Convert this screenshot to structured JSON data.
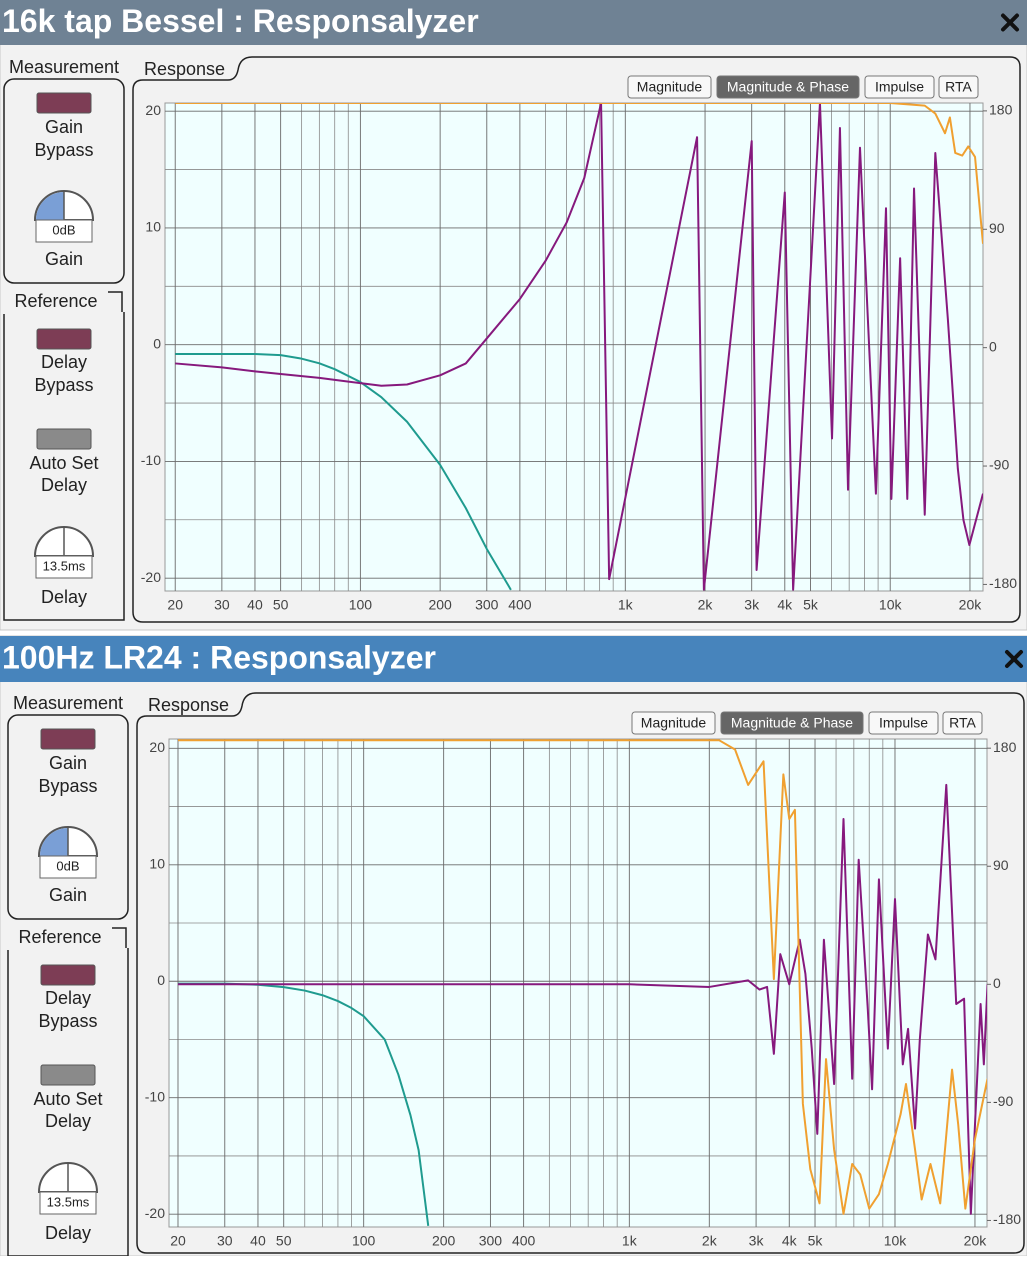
{
  "windows": [
    {
      "title": "16k tap Bessel : Responsalyzer",
      "measurement": "Measurement",
      "gain_bypass": [
        "Gain",
        "Bypass"
      ],
      "gain_value": "0dB",
      "gain": "Gain",
      "reference": "Reference",
      "delay_bypass": [
        "Delay",
        "Bypass"
      ],
      "auto_set_delay": [
        "Auto Set",
        "Delay"
      ],
      "delay_value": "13.5ms",
      "delay": "Delay",
      "response_tab": "Response",
      "buttons": [
        "Magnitude",
        "Magnitude & Phase",
        "Impulse",
        "RTA"
      ],
      "selected_button": 1
    },
    {
      "title": "100Hz LR24 : Responsalyzer",
      "measurement": "Measurement",
      "gain_bypass": [
        "Gain",
        "Bypass"
      ],
      "gain_value": "0dB",
      "gain": "Gain",
      "reference": "Reference",
      "delay_bypass": [
        "Delay",
        "Bypass"
      ],
      "auto_set_delay": [
        "Auto Set",
        "Delay"
      ],
      "delay_value": "13.5ms",
      "delay": "Delay",
      "response_tab": "Response",
      "buttons": [
        "Magnitude",
        "Magnitude & Phase",
        "Impulse",
        "RTA"
      ],
      "selected_button": 1
    }
  ],
  "chart_data": [
    {
      "type": "line",
      "log_x": true,
      "grid": true,
      "xlim": [
        18.3,
        22400
      ],
      "xticks": [
        20,
        30,
        40,
        50,
        100,
        200,
        300,
        400,
        {
          "value": 1000,
          "label": "1k"
        },
        {
          "value": 2000,
          "label": "2k"
        },
        {
          "value": 3000,
          "label": "3k"
        },
        {
          "value": 4000,
          "label": "4k"
        },
        {
          "value": 5000,
          "label": "5k"
        },
        {
          "value": 10000,
          "label": "10k"
        },
        {
          "value": 20000,
          "label": "20k"
        }
      ],
      "xminor": [
        60,
        70,
        80,
        90,
        500,
        600,
        700,
        800,
        900,
        6000,
        7000,
        8000,
        9000
      ],
      "ylim": [
        -21.1,
        20.7
      ],
      "yticks": [
        -20,
        -10,
        0,
        10,
        20
      ],
      "yminor": [
        -15,
        -5,
        5,
        15
      ],
      "y2lim": [
        -185,
        186
      ],
      "y2ticks": [
        -180,
        -90,
        0,
        90,
        180
      ],
      "series": [
        {
          "color": "#1f9b8f",
          "x": [
            20,
            30,
            40,
            50,
            60,
            70,
            80,
            100,
            120,
            150,
            200,
            250,
            300,
            370
          ],
          "values": [
            -0.8,
            -0.8,
            -0.8,
            -0.9,
            -1.2,
            -1.6,
            -2.1,
            -3.2,
            -4.5,
            -6.6,
            -10.3,
            -14,
            -17.5,
            -21
          ]
        },
        {
          "color": "#86197d",
          "axis": "y2",
          "x": [
            20,
            30,
            40,
            50,
            70,
            100,
            120,
            150,
            200,
            250,
            300,
            400,
            500,
            600,
            700,
            810,
            869,
            1866,
            1980,
            3000,
            3130,
            4000,
            4300,
            5430,
            6030,
            6460,
            6930,
            7690,
            8830,
            9640,
            10100,
            10900,
            11600,
            12300,
            13500,
            14800,
            16500,
            18000,
            18900,
            19900,
            22400
          ],
          "values": [
            -12,
            -15,
            -18,
            -20,
            -23,
            -27,
            -29,
            -28,
            -21,
            -12,
            7,
            37,
            66,
            95,
            129,
            186,
            -176,
            160,
            -184,
            157,
            -169,
            118,
            -184,
            186,
            -69,
            167,
            -108,
            152,
            -111,
            106,
            -115,
            68,
            -115,
            121,
            -127,
            148,
            22,
            -92,
            -131,
            -150,
            -111
          ]
        },
        {
          "color": "#f0a030",
          "axis": "y2",
          "x": [
            20,
            1000,
            10000,
            13500,
            14800,
            16100,
            16800,
            17600,
            18700,
            19700,
            20900,
            22400
          ],
          "values": [
            186,
            186,
            186,
            184,
            178,
            163,
            175,
            148,
            146,
            153,
            145,
            79
          ]
        }
      ]
    },
    {
      "type": "line",
      "log_x": true,
      "grid": true,
      "xlim": [
        18.5,
        22200
      ],
      "xticks": [
        20,
        30,
        40,
        50,
        100,
        200,
        300,
        400,
        {
          "value": 1000,
          "label": "1k"
        },
        {
          "value": 2000,
          "label": "2k"
        },
        {
          "value": 3000,
          "label": "3k"
        },
        {
          "value": 4000,
          "label": "4k"
        },
        {
          "value": 5000,
          "label": "5k"
        },
        {
          "value": 10000,
          "label": "10k"
        },
        {
          "value": 20000,
          "label": "20k"
        }
      ],
      "xminor": [
        60,
        70,
        80,
        90,
        500,
        600,
        700,
        800,
        900,
        6000,
        7000,
        8000,
        9000
      ],
      "ylim": [
        -21.1,
        20.8
      ],
      "yticks": [
        -20,
        -10,
        0,
        10,
        20
      ],
      "yminor": [
        -15,
        -5,
        5,
        15
      ],
      "y2lim": [
        -185,
        187
      ],
      "y2ticks": [
        -180,
        -90,
        0,
        90,
        180
      ],
      "series": [
        {
          "color": "#1f9b8f",
          "x": [
            20,
            30,
            40,
            50,
            60,
            70,
            80,
            90,
            100,
            120,
            135,
            150,
            161,
            175
          ],
          "values": [
            -0.2,
            -0.2,
            -0.3,
            -0.5,
            -0.8,
            -1.2,
            -1.7,
            -2.3,
            -3.0,
            -5.0,
            -8.0,
            -11.5,
            -14.5,
            -21
          ]
        },
        {
          "color": "#86197d",
          "axis": "y2",
          "x": [
            20,
            100,
            1000,
            2000,
            2800,
            3090,
            3300,
            3500,
            3700,
            4000,
            4380,
            4600,
            4860,
            5100,
            5400,
            5900,
            6400,
            6900,
            7300,
            7900,
            8200,
            8700,
            9400,
            10000,
            10700,
            11200,
            11900,
            12400,
            13300,
            14200,
            15600,
            17000,
            18200,
            19300,
            21000,
            21600,
            22300
          ],
          "values": [
            0,
            0,
            0,
            -2,
            3,
            -4,
            -2,
            -53,
            23,
            0,
            34,
            8,
            -49,
            -114,
            34,
            -76,
            126,
            -72,
            95,
            -19,
            -80,
            80,
            -49,
            65,
            -61,
            -34,
            -110,
            -42,
            38,
            19,
            152,
            -15,
            -11,
            -175,
            -15,
            -61,
            0
          ]
        },
        {
          "color": "#f0a030",
          "axis": "y2",
          "x": [
            20,
            1000,
            2180,
            2500,
            2800,
            3200,
            3500,
            3800,
            4000,
            4200,
            4500,
            4800,
            5200,
            5500,
            5900,
            6400,
            6900,
            7400,
            8000,
            8700,
            9400,
            10500,
            11000,
            11900,
            12600,
            13600,
            14800,
            16400,
            17300,
            18400,
            20000,
            22300
          ],
          "values": [
            186,
            186,
            186,
            179,
            152,
            170,
            4,
            160,
            126,
            133,
            -91,
            -141,
            -167,
            -57,
            -126,
            -175,
            -137,
            -145,
            -171,
            -160,
            -137,
            -99,
            -76,
            -126,
            -164,
            -137,
            -167,
            -65,
            -107,
            -171,
            -118,
            -72
          ]
        }
      ]
    }
  ]
}
